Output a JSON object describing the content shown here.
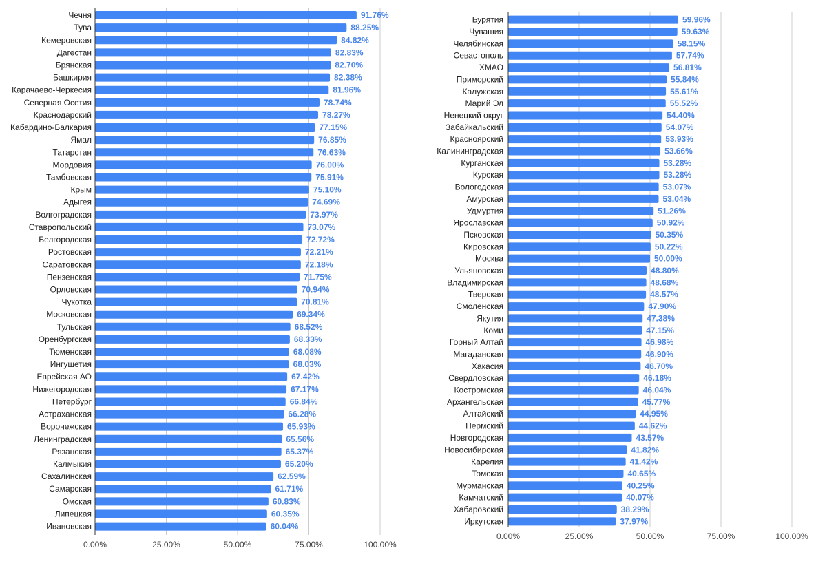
{
  "colors": {
    "bar": "#4285f4",
    "value_label": "#4a86e8",
    "grid": "#cccccc",
    "axis": "#333333"
  },
  "chart_data": [
    {
      "type": "bar",
      "orientation": "horizontal",
      "xlim": [
        0,
        100
      ],
      "x_ticks": [
        "0.00%",
        "25.00%",
        "50.00%",
        "75.00%",
        "100.00%"
      ],
      "grid": true,
      "categories": [
        "Чечня",
        "Тува",
        "Кемеровская",
        "Дагестан",
        "Брянская",
        "Башкирия",
        "Карачаево-Черкесия",
        "Северная Осетия",
        "Краснодарский",
        "Кабардино-Балкария",
        "Ямал",
        "Татарстан",
        "Мордовия",
        "Тамбовская",
        "Крым",
        "Адыгея",
        "Волгоградская",
        "Ставропольский",
        "Белгородская",
        "Ростовская",
        "Саратовская",
        "Пензенская",
        "Орловская",
        "Чукотка",
        "Московская",
        "Тульская",
        "Оренбургская",
        "Тюменская",
        "Ингушетия",
        "Еврейская АО",
        "Нижегородская",
        "Петербург",
        "Астраханская",
        "Воронежская",
        "Ленинградская",
        "Рязанская",
        "Калмыкия",
        "Сахалинская",
        "Самарская",
        "Омская",
        "Липецкая",
        "Ивановская"
      ],
      "values": [
        91.76,
        88.25,
        84.82,
        82.83,
        82.7,
        82.38,
        81.96,
        78.74,
        78.27,
        77.15,
        76.85,
        76.63,
        76.0,
        75.91,
        75.1,
        74.69,
        73.97,
        73.07,
        72.72,
        72.21,
        72.18,
        71.75,
        70.94,
        70.81,
        69.34,
        68.52,
        68.33,
        68.08,
        68.03,
        67.42,
        67.17,
        66.84,
        66.28,
        65.93,
        65.56,
        65.37,
        65.2,
        62.59,
        61.71,
        60.83,
        60.35,
        60.04
      ],
      "labels": [
        "91.76%",
        "88.25%",
        "84.82%",
        "82.83%",
        "82.70%",
        "82.38%",
        "81.96%",
        "78.74%",
        "78.27%",
        "77.15%",
        "76.85%",
        "76.63%",
        "76.00%",
        "75.91%",
        "75.10%",
        "74.69%",
        "73.97%",
        "73.07%",
        "72.72%",
        "72.21%",
        "72.18%",
        "71.75%",
        "70.94%",
        "70.81%",
        "69.34%",
        "68.52%",
        "68.33%",
        "68.08%",
        "68.03%",
        "67.42%",
        "67.17%",
        "66.84%",
        "66.28%",
        "65.93%",
        "65.56%",
        "65.37%",
        "65.20%",
        "62.59%",
        "61.71%",
        "60.83%",
        "60.35%",
        "60.04%"
      ]
    },
    {
      "type": "bar",
      "orientation": "horizontal",
      "xlim": [
        0,
        100
      ],
      "x_ticks": [
        "0.00%",
        "25.00%",
        "50.00%",
        "75.00%",
        "100.00%"
      ],
      "grid": true,
      "categories": [
        "Бурятия",
        "Чувашия",
        "Челябинская",
        "Севастополь",
        "ХМАО",
        "Приморский",
        "Калужская",
        "Марий Эл",
        "Ненецкий округ",
        "Забайкальский",
        "Красноярский",
        "Калининградская",
        "Курганская",
        "Курская",
        "Вологодская",
        "Амурская",
        "Удмуртия",
        "Ярославская",
        "Псковская",
        "Кировская",
        "Москва",
        "Ульяновская",
        "Владимирская",
        "Тверская",
        "Смоленская",
        "Якутия",
        "Коми",
        "Горный Алтай",
        "Магаданская",
        "Хакасия",
        "Свердловская",
        "Костромская",
        "Архангельская",
        "Алтайский",
        "Пермский",
        "Новгородская",
        "Новосибирская",
        "Карелия",
        "Томская",
        "Мурманская",
        "Камчатский",
        "Хабаровский",
        "Иркутская"
      ],
      "values": [
        59.96,
        59.63,
        58.15,
        57.74,
        56.81,
        55.84,
        55.61,
        55.52,
        54.4,
        54.07,
        53.93,
        53.66,
        53.28,
        53.28,
        53.07,
        53.04,
        51.26,
        50.92,
        50.35,
        50.22,
        50.0,
        48.8,
        48.68,
        48.57,
        47.9,
        47.38,
        47.15,
        46.98,
        46.9,
        46.7,
        46.18,
        46.04,
        45.77,
        44.95,
        44.62,
        43.57,
        41.82,
        41.42,
        40.65,
        40.25,
        40.07,
        38.29,
        37.97
      ],
      "labels": [
        "59.96%",
        "59.63%",
        "58.15%",
        "57.74%",
        "56.81%",
        "55.84%",
        "55.61%",
        "55.52%",
        "54.40%",
        "54.07%",
        "53.93%",
        "53.66%",
        "53.28%",
        "53.28%",
        "53.07%",
        "53.04%",
        "51.26%",
        "50.92%",
        "50.35%",
        "50.22%",
        "50.00%",
        "48.80%",
        "48.68%",
        "48.57%",
        "47.90%",
        "47.38%",
        "47.15%",
        "46.98%",
        "46.90%",
        "46.70%",
        "46.18%",
        "46.04%",
        "45.77%",
        "44.95%",
        "44.62%",
        "43.57%",
        "41.82%",
        "41.42%",
        "40.65%",
        "40.25%",
        "40.07%",
        "38.29%",
        "37.97%"
      ]
    }
  ]
}
